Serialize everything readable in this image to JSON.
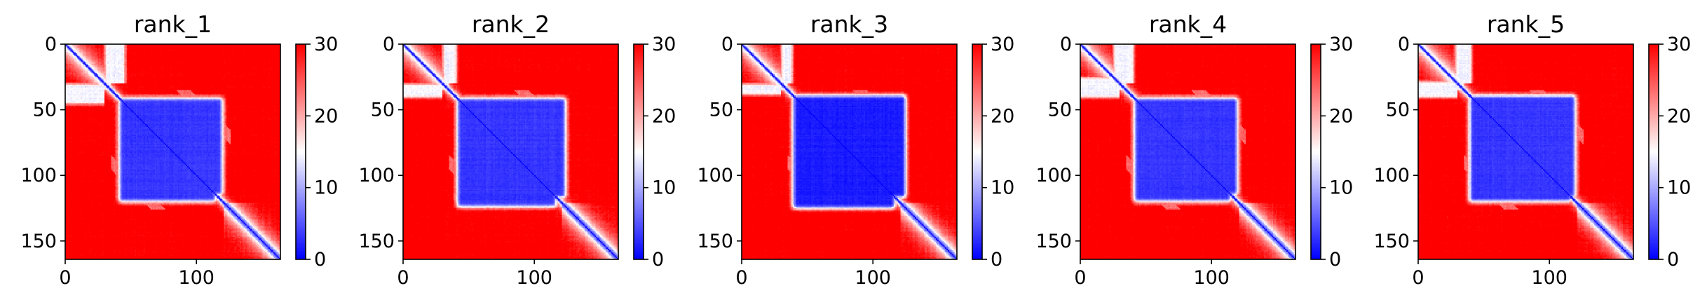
{
  "chart_data": [
    {
      "type": "heatmap",
      "title": "rank_1",
      "size": 164,
      "xticks": [
        0,
        100
      ],
      "yticks": [
        0,
        50,
        100,
        150
      ],
      "xlim": [
        0,
        164
      ],
      "ylim": [
        164,
        0
      ],
      "colorbar": {
        "min": 0,
        "max": 30,
        "ticks": [
          0,
          10,
          20,
          30
        ],
        "colors": [
          "#0000ff",
          "#ffffff",
          "#ff0000"
        ]
      },
      "regions": {
        "contact_block": [
          40,
          115,
          40,
          120
        ],
        "contact_block_strength": 0.85,
        "nterm_contact_x": [
          30,
          45
        ],
        "strand_pair_offset": 55
      }
    },
    {
      "type": "heatmap",
      "title": "rank_2",
      "size": 164,
      "xticks": [
        0,
        100
      ],
      "yticks": [
        0,
        50,
        100,
        150
      ],
      "xlim": [
        0,
        164
      ],
      "ylim": [
        164,
        0
      ],
      "colorbar": {
        "min": 0,
        "max": 30,
        "ticks": [
          0,
          10,
          20,
          30
        ],
        "colors": [
          "#0000ff",
          "#ffffff",
          "#ff0000"
        ]
      },
      "regions": {
        "contact_block": [
          40,
          117,
          38,
          124
        ],
        "contact_block_strength": 0.85,
        "nterm_contact_x": [
          30,
          40
        ],
        "strand_pair_offset": 55
      }
    },
    {
      "type": "heatmap",
      "title": "rank_3",
      "size": 164,
      "xticks": [
        0,
        100
      ],
      "yticks": [
        0,
        50,
        100,
        150
      ],
      "xlim": [
        0,
        164
      ],
      "ylim": [
        164,
        0
      ],
      "colorbar": {
        "min": 0,
        "max": 30,
        "ticks": [
          0,
          10,
          20,
          30
        ],
        "colors": [
          "#0000ff",
          "#ffffff",
          "#ff0000"
        ]
      },
      "regions": {
        "contact_block": [
          38,
          117,
          35,
          125
        ],
        "contact_block_strength": 0.9,
        "nterm_contact_x": [
          30,
          38
        ],
        "strand_pair_offset": 55
      }
    },
    {
      "type": "heatmap",
      "title": "rank_4",
      "size": 164,
      "xticks": [
        0,
        100
      ],
      "yticks": [
        0,
        50,
        100,
        150
      ],
      "xlim": [
        0,
        164
      ],
      "ylim": [
        164,
        0
      ],
      "colorbar": {
        "min": 0,
        "max": 30,
        "ticks": [
          0,
          10,
          20,
          30
        ],
        "colors": [
          "#0000ff",
          "#ffffff",
          "#ff0000"
        ]
      },
      "regions": {
        "contact_block": [
          40,
          115,
          30,
          120
        ],
        "contact_block_strength": 0.85,
        "nterm_contact_x": [
          25,
          40
        ],
        "strand_pair_offset": 55
      }
    },
    {
      "type": "heatmap",
      "title": "rank_5",
      "size": 164,
      "xticks": [
        0,
        100
      ],
      "yticks": [
        0,
        50,
        100,
        150
      ],
      "xlim": [
        0,
        164
      ],
      "ylim": [
        164,
        0
      ],
      "colorbar": {
        "min": 0,
        "max": 30,
        "ticks": [
          0,
          10,
          20,
          30
        ],
        "colors": [
          "#0000ff",
          "#ffffff",
          "#ff0000"
        ]
      },
      "regions": {
        "contact_block": [
          38,
          117,
          32,
          120
        ],
        "contact_block_strength": 0.85,
        "nterm_contact_x": [
          28,
          40
        ],
        "strand_pair_offset": 55
      }
    }
  ]
}
